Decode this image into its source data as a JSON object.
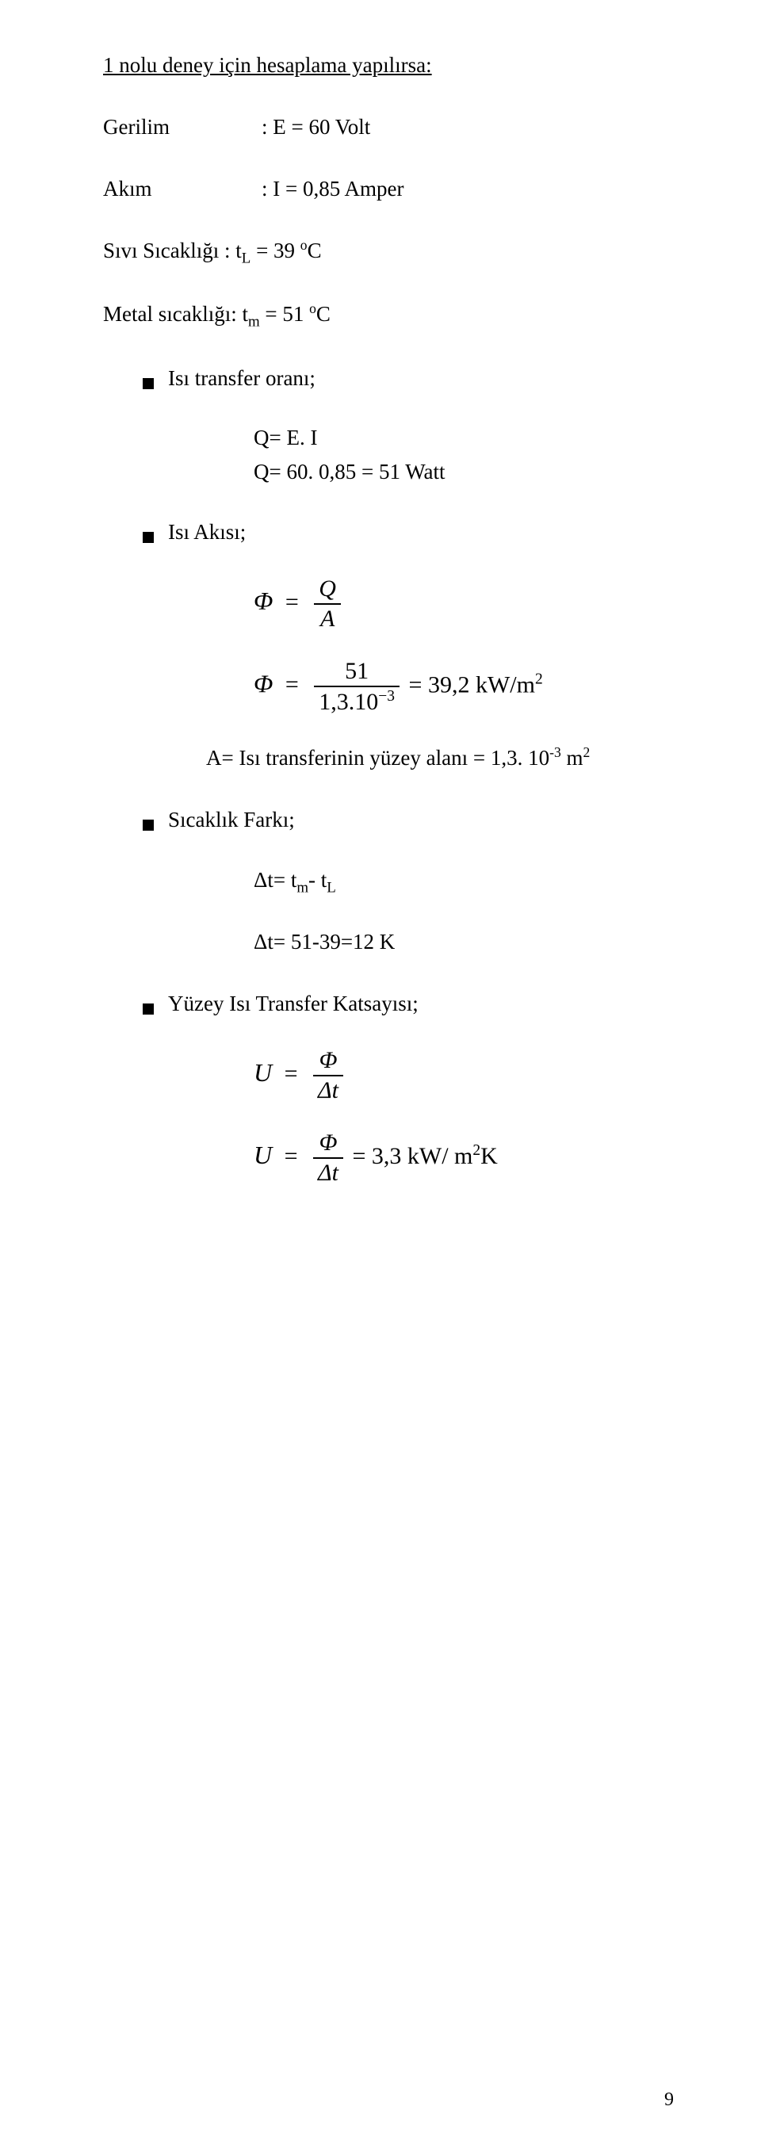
{
  "title": "1 nolu deney için hesaplama yapılırsa:",
  "gerilim_label": "Gerilim",
  "gerilim_value": ": E = 60 Volt",
  "akim_label": "Akım",
  "akim_value": ": I = 0,85 Amper",
  "sivi_line": "Sıvı Sıcaklığı : t",
  "sivi_sub": "L",
  "sivi_rest": " = 39 ",
  "sivi_unit_sup": "o",
  "sivi_unit": "C",
  "metal_line": "Metal sıcaklığı: t",
  "metal_sub": "m",
  "metal_rest": " = 51 ",
  "metal_unit_sup": "o",
  "metal_unit": "C",
  "b1": "Isı transfer oranı;",
  "q_line1": "Q= E. I",
  "q_line2": "Q= 60. 0,85 = 51 Watt",
  "b2": "Isı Akısı;",
  "phi1_lhs": "Φ",
  "phi1_eq": "=",
  "phi1_num": "Q",
  "phi1_den": "A",
  "phi2_lhs": "Φ",
  "phi2_eq": "=",
  "phi2_num": "51",
  "phi2_den_a": "1,3.10",
  "phi2_den_exp": "−3",
  "phi2_result": " = 39,2 kW/m",
  "phi2_result_sup": "2",
  "a_line_a": "A= Isı transferinin yüzey alanı = 1,3. 10",
  "a_line_exp": "-3",
  "a_line_b": " m",
  "a_line_sup": "2",
  "b3": "Sıcaklık Farkı;",
  "dt1_a": "Δt= t",
  "dt1_sub1": "m",
  "dt1_mid": "- t",
  "dt1_sub2": "L",
  "dt2": "Δt= 51-39=12 K",
  "b4": "Yüzey Isı Transfer Katsayısı;",
  "u1_lhs": "U",
  "u1_eq": "=",
  "u1_num": "Φ",
  "u1_den": "Δt",
  "u2_lhs": "U",
  "u2_eq": "=",
  "u2_num": "Φ",
  "u2_den": "Δt",
  "u2_result": " = 3,3 kW/ m",
  "u2_result_sup": "2",
  "u2_result_tail": "K",
  "page_number": "9"
}
